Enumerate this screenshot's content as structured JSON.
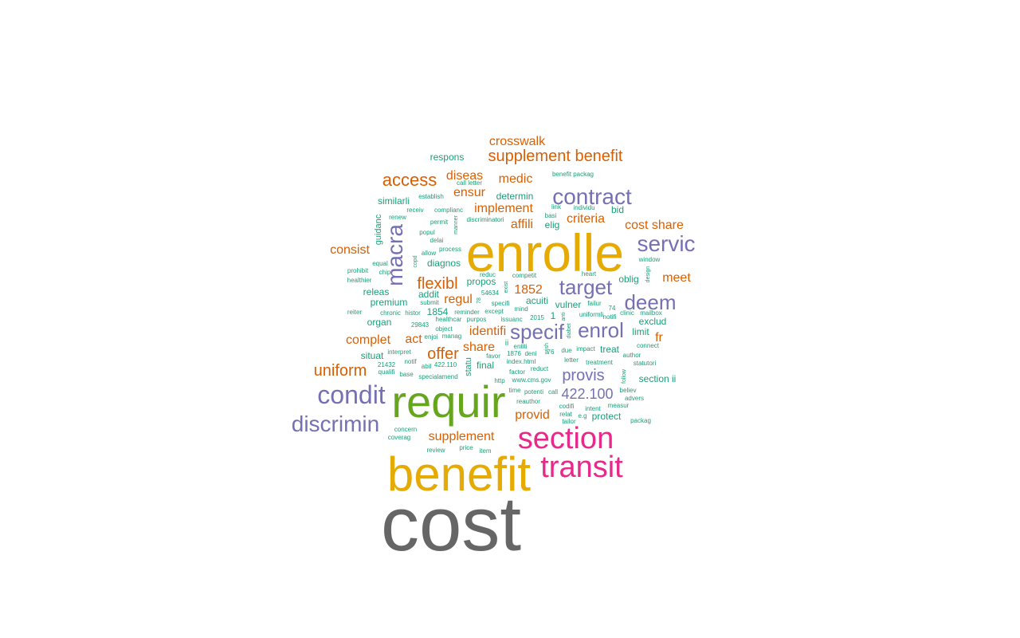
{
  "word_cloud": {
    "colors": {
      "gray": "#666666",
      "gold": "#E6AB02",
      "green": "#66A61E",
      "pink": "#E7298A",
      "purple": "#7570B3",
      "orange": "#D95F02",
      "teal": "#1B9E77"
    },
    "words": [
      {
        "text": "cost",
        "color": "gray"
      },
      {
        "text": "enrolle",
        "color": "gold"
      },
      {
        "text": "benefit",
        "color": "gold"
      },
      {
        "text": "requir",
        "color": "green"
      },
      {
        "text": "section",
        "color": "pink"
      },
      {
        "text": "transit",
        "color": "pink"
      },
      {
        "text": "condit",
        "color": "purple"
      },
      {
        "text": "discrimin",
        "color": "purple"
      },
      {
        "text": "contract",
        "color": "purple"
      },
      {
        "text": "servic",
        "color": "purple"
      },
      {
        "text": "macra",
        "color": "purple"
      },
      {
        "text": "deem",
        "color": "purple"
      },
      {
        "text": "enrol",
        "color": "purple"
      },
      {
        "text": "target",
        "color": "purple"
      },
      {
        "text": "specif",
        "color": "purple"
      },
      {
        "text": "supplement benefit",
        "color": "orange"
      },
      {
        "text": "access",
        "color": "orange"
      },
      {
        "text": "uniform",
        "color": "orange"
      },
      {
        "text": "flexibl",
        "color": "orange"
      },
      {
        "text": "offer",
        "color": "orange"
      },
      {
        "text": "provis",
        "color": "purple"
      },
      {
        "text": "422.100",
        "color": "purple"
      },
      {
        "text": "crosswalk",
        "color": "orange"
      },
      {
        "text": "diseas",
        "color": "orange"
      },
      {
        "text": "medic",
        "color": "orange"
      },
      {
        "text": "ensur",
        "color": "orange"
      },
      {
        "text": "implement",
        "color": "orange"
      },
      {
        "text": "affili",
        "color": "orange"
      },
      {
        "text": "criteria",
        "color": "orange"
      },
      {
        "text": "cost share",
        "color": "orange"
      },
      {
        "text": "consist",
        "color": "orange"
      },
      {
        "text": "meet",
        "color": "orange"
      },
      {
        "text": "1852",
        "color": "orange"
      },
      {
        "text": "regul",
        "color": "orange"
      },
      {
        "text": "identifi",
        "color": "orange"
      },
      {
        "text": "complet",
        "color": "orange"
      },
      {
        "text": "act",
        "color": "orange"
      },
      {
        "text": "share",
        "color": "orange"
      },
      {
        "text": "fr",
        "color": "orange"
      },
      {
        "text": "provid",
        "color": "orange"
      },
      {
        "text": "supplement",
        "color": "orange"
      },
      {
        "text": "respons",
        "color": "teal"
      },
      {
        "text": "determin",
        "color": "teal"
      },
      {
        "text": "similarli",
        "color": "teal"
      },
      {
        "text": "guidanc",
        "color": "teal"
      },
      {
        "text": "diagnos",
        "color": "teal"
      },
      {
        "text": "propos",
        "color": "teal"
      },
      {
        "text": "releas",
        "color": "teal"
      },
      {
        "text": "addit",
        "color": "teal"
      },
      {
        "text": "premium",
        "color": "teal"
      },
      {
        "text": "acuiti",
        "color": "teal"
      },
      {
        "text": "organ",
        "color": "teal"
      },
      {
        "text": "1854",
        "color": "teal"
      },
      {
        "text": "vulner",
        "color": "teal"
      },
      {
        "text": "elig",
        "color": "teal"
      },
      {
        "text": "bid",
        "color": "teal"
      },
      {
        "text": "oblig",
        "color": "teal"
      },
      {
        "text": "exclud",
        "color": "teal"
      },
      {
        "text": "limit",
        "color": "teal"
      },
      {
        "text": "situat",
        "color": "teal"
      },
      {
        "text": "final",
        "color": "teal"
      },
      {
        "text": "statu",
        "color": "teal"
      },
      {
        "text": "treat",
        "color": "teal"
      },
      {
        "text": "protect",
        "color": "teal"
      },
      {
        "text": "section ii",
        "color": "teal"
      },
      {
        "text": "1",
        "color": "teal"
      },
      {
        "text": "ii",
        "color": "teal"
      },
      {
        "text": "benefit packag",
        "color": "teal"
      },
      {
        "text": "call letter",
        "color": "teal"
      },
      {
        "text": "establish",
        "color": "teal"
      },
      {
        "text": "complianc",
        "color": "teal"
      },
      {
        "text": "link",
        "color": "teal"
      },
      {
        "text": "individu",
        "color": "teal"
      },
      {
        "text": "renew",
        "color": "teal"
      },
      {
        "text": "receiv",
        "color": "teal"
      },
      {
        "text": "permit",
        "color": "teal"
      },
      {
        "text": "discriminatori",
        "color": "teal"
      },
      {
        "text": "basi",
        "color": "teal"
      },
      {
        "text": "popul",
        "color": "teal"
      },
      {
        "text": "delai",
        "color": "teal"
      },
      {
        "text": "manner",
        "color": "teal"
      },
      {
        "text": "process",
        "color": "teal"
      },
      {
        "text": "allow",
        "color": "teal"
      },
      {
        "text": "window",
        "color": "teal"
      },
      {
        "text": "equal",
        "color": "teal"
      },
      {
        "text": "copd",
        "color": "teal"
      },
      {
        "text": "reduc",
        "color": "teal"
      },
      {
        "text": "design",
        "color": "teal"
      },
      {
        "text": "prohibit",
        "color": "teal"
      },
      {
        "text": "chip",
        "color": "teal"
      },
      {
        "text": "competit",
        "color": "teal"
      },
      {
        "text": "heart",
        "color": "teal"
      },
      {
        "text": "healthier",
        "color": "teal"
      },
      {
        "text": "54634",
        "color": "teal"
      },
      {
        "text": "exist",
        "color": "teal"
      },
      {
        "text": "reminder",
        "color": "teal"
      },
      {
        "text": "except",
        "color": "teal"
      },
      {
        "text": "specifi",
        "color": "teal"
      },
      {
        "text": "submit",
        "color": "teal"
      },
      {
        "text": "mind",
        "color": "teal"
      },
      {
        "text": "failur",
        "color": "teal"
      },
      {
        "text": "reiter",
        "color": "teal"
      },
      {
        "text": "chronic",
        "color": "teal"
      },
      {
        "text": "histor",
        "color": "teal"
      },
      {
        "text": "74",
        "color": "teal"
      },
      {
        "text": "clinic",
        "color": "teal"
      },
      {
        "text": "mailbox",
        "color": "teal"
      },
      {
        "text": "healthcar",
        "color": "teal"
      },
      {
        "text": "purpos",
        "color": "teal"
      },
      {
        "text": "issuanc",
        "color": "teal"
      },
      {
        "text": "2015",
        "color": "teal"
      },
      {
        "text": "uniformli",
        "color": "teal"
      },
      {
        "text": "notifi",
        "color": "teal"
      },
      {
        "text": "29843",
        "color": "teal"
      },
      {
        "text": "object",
        "color": "teal"
      },
      {
        "text": "diabet",
        "color": "teal"
      },
      {
        "text": "enjoi",
        "color": "teal"
      },
      {
        "text": "manag",
        "color": "teal"
      },
      {
        "text": "entiti",
        "color": "teal"
      },
      {
        "text": "connect",
        "color": "teal"
      },
      {
        "text": "interpret",
        "color": "teal"
      },
      {
        "text": "favor",
        "color": "teal"
      },
      {
        "text": "1876",
        "color": "teal"
      },
      {
        "text": "deni",
        "color": "teal"
      },
      {
        "text": "76",
        "color": "teal"
      },
      {
        "text": "due",
        "color": "teal"
      },
      {
        "text": "impact",
        "color": "teal"
      },
      {
        "text": "author",
        "color": "teal"
      },
      {
        "text": "notif",
        "color": "teal"
      },
      {
        "text": "abil",
        "color": "teal"
      },
      {
        "text": "422.110",
        "color": "teal"
      },
      {
        "text": "index.html",
        "color": "teal"
      },
      {
        "text": "letter",
        "color": "teal"
      },
      {
        "text": "treatment",
        "color": "teal"
      },
      {
        "text": "statutori",
        "color": "teal"
      },
      {
        "text": "21432",
        "color": "teal"
      },
      {
        "text": "qualifi",
        "color": "teal"
      },
      {
        "text": "factor",
        "color": "teal"
      },
      {
        "text": "reduct",
        "color": "teal"
      },
      {
        "text": "base",
        "color": "teal"
      },
      {
        "text": "specialamend",
        "color": "teal"
      },
      {
        "text": "http",
        "color": "teal"
      },
      {
        "text": "www.cms.gov",
        "color": "teal"
      },
      {
        "text": "follow",
        "color": "teal"
      },
      {
        "text": "time",
        "color": "teal"
      },
      {
        "text": "potenti",
        "color": "teal"
      },
      {
        "text": "call",
        "color": "teal"
      },
      {
        "text": "believ",
        "color": "teal"
      },
      {
        "text": "advers",
        "color": "teal"
      },
      {
        "text": "reauthor",
        "color": "teal"
      },
      {
        "text": "codifi",
        "color": "teal"
      },
      {
        "text": "intent",
        "color": "teal"
      },
      {
        "text": "measur",
        "color": "teal"
      },
      {
        "text": "relat",
        "color": "teal"
      },
      {
        "text": "e.g",
        "color": "teal"
      },
      {
        "text": "tailor",
        "color": "teal"
      },
      {
        "text": "packag",
        "color": "teal"
      },
      {
        "text": "concern",
        "color": "teal"
      },
      {
        "text": "coverag",
        "color": "teal"
      },
      {
        "text": "review",
        "color": "teal"
      },
      {
        "text": "price",
        "color": "teal"
      },
      {
        "text": "item",
        "color": "teal"
      },
      {
        "text": "anti",
        "color": "teal"
      },
      {
        "text": "wish",
        "color": "teal"
      },
      {
        "text": "78",
        "color": "teal"
      }
    ]
  }
}
